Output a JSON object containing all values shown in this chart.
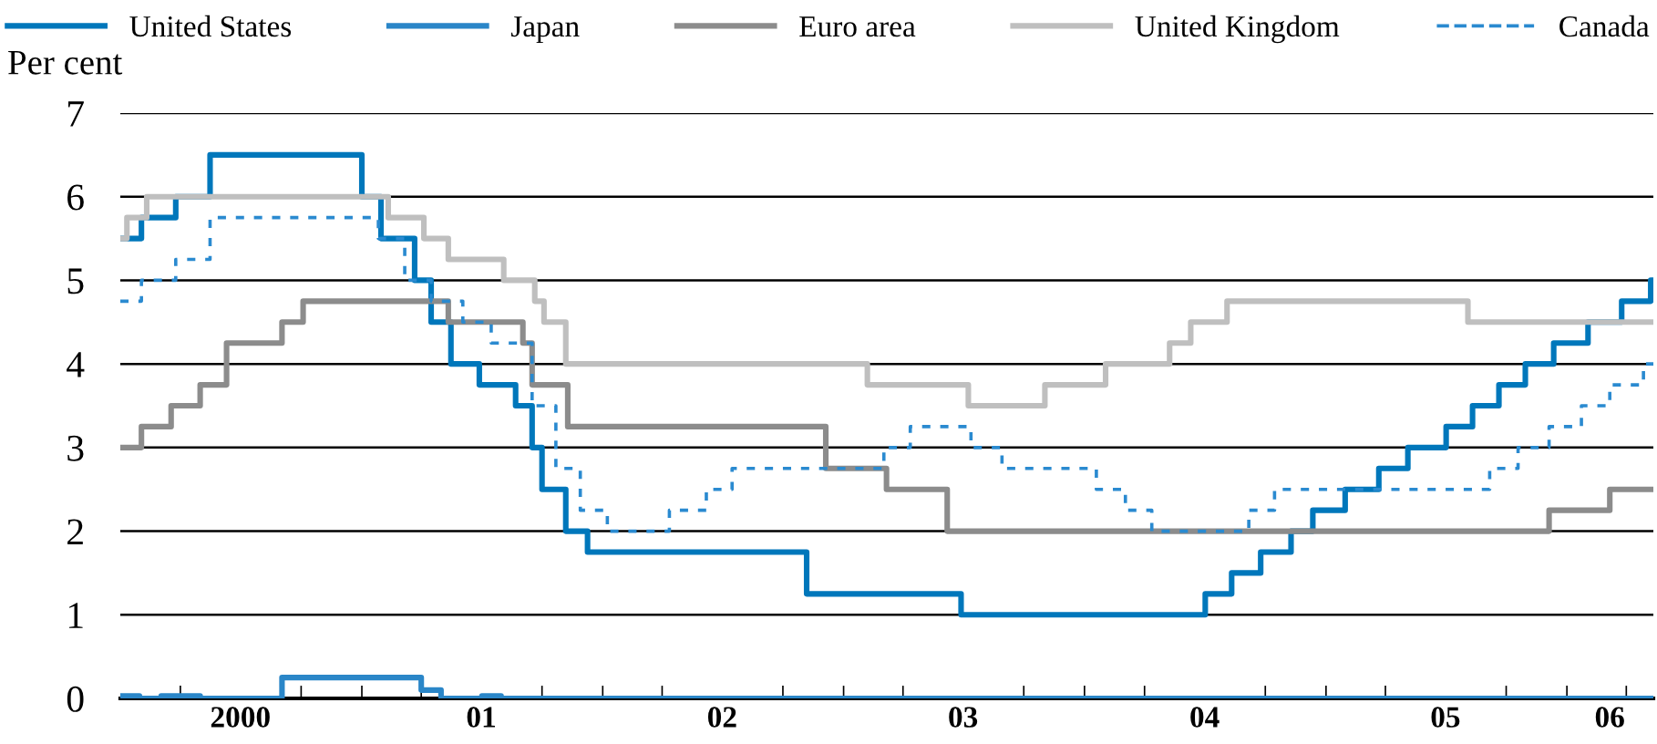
{
  "chart_data": {
    "type": "step",
    "ylabel": "Per cent",
    "xlim": [
      "2000-01-01",
      "2006-05-12"
    ],
    "ylim": [
      0,
      7
    ],
    "yticks": [
      0,
      1,
      2,
      3,
      4,
      5,
      6,
      7
    ],
    "xticks": [
      {
        "value": "2000-07-01",
        "label": "2000"
      },
      {
        "value": "2001-07-01",
        "label": "01"
      },
      {
        "value": "2002-07-01",
        "label": "02"
      },
      {
        "value": "2003-07-01",
        "label": "03"
      },
      {
        "value": "2004-07-01",
        "label": "04"
      },
      {
        "value": "2005-07-01",
        "label": "05"
      },
      {
        "value": "2006-03-07",
        "label": "06"
      },
      {
        "value": "2000-04-01",
        "label": null
      },
      {
        "value": "2000-10-01",
        "label": null
      },
      {
        "value": "2001-01-01",
        "label": null
      },
      {
        "value": "2001-04-01",
        "label": null
      },
      {
        "value": "2001-10-01",
        "label": null
      },
      {
        "value": "2002-01-01",
        "label": null
      },
      {
        "value": "2002-04-01",
        "label": null
      },
      {
        "value": "2002-10-01",
        "label": null
      },
      {
        "value": "2003-01-01",
        "label": null
      },
      {
        "value": "2003-04-01",
        "label": null
      },
      {
        "value": "2003-10-01",
        "label": null
      },
      {
        "value": "2004-01-01",
        "label": null
      },
      {
        "value": "2004-04-01",
        "label": null
      },
      {
        "value": "2004-10-01",
        "label": null
      },
      {
        "value": "2005-01-01",
        "label": null
      },
      {
        "value": "2005-04-01",
        "label": null
      },
      {
        "value": "2005-10-01",
        "label": null
      },
      {
        "value": "2006-01-01",
        "label": null
      },
      {
        "value": "2006-04-01",
        "label": null
      }
    ],
    "grid": "y",
    "legend": "top",
    "series": [
      {
        "name": "United States",
        "color": "#0077bb",
        "line_style": "solid",
        "x": [
          "2000-01-01",
          "2000-02-02",
          "2000-03-25",
          "2000-05-16",
          "2001-01-01",
          "2001-01-30",
          "2001-03-22",
          "2001-04-16",
          "2001-05-16",
          "2001-06-28",
          "2001-08-22",
          "2001-09-16",
          "2001-10-01",
          "2001-11-06",
          "2001-12-09",
          "2002-11-06",
          "2003-06-28",
          "2004-07-02",
          "2004-08-11",
          "2004-09-24",
          "2004-11-09",
          "2004-12-12",
          "2005-01-30",
          "2005-03-22",
          "2005-05-05",
          "2005-07-02",
          "2005-08-11",
          "2005-09-20",
          "2005-10-30",
          "2005-12-12",
          "2006-02-02",
          "2006-03-25",
          "2006-05-08",
          "2006-05-12"
        ],
        "values": [
          5.5,
          5.75,
          6.0,
          6.5,
          6.0,
          5.5,
          5.0,
          4.5,
          4.0,
          3.75,
          3.5,
          3.0,
          2.5,
          2.0,
          1.75,
          1.25,
          1.0,
          1.25,
          1.5,
          1.75,
          2.0,
          2.25,
          2.5,
          2.75,
          3.0,
          3.25,
          3.5,
          3.75,
          4.0,
          4.25,
          4.5,
          4.75,
          5.0,
          5.0
        ]
      },
      {
        "name": "Japan",
        "color": "#2a86c8",
        "line_style": "solid",
        "x": [
          "2000-01-01",
          "2000-01-30",
          "2000-03-03",
          "2000-05-01",
          "2000-09-02",
          "2001-04-01",
          "2001-05-01",
          "2001-07-02",
          "2001-07-31",
          "2006-05-12"
        ],
        "values": [
          0.03,
          0,
          0.03,
          0,
          0.25,
          0.1,
          0,
          0.03,
          0,
          0
        ]
      },
      {
        "name": "Euro area",
        "color": "#8c8c8c",
        "line_style": "solid",
        "x": [
          "2000-01-01",
          "2000-02-02",
          "2000-03-18",
          "2000-05-01",
          "2000-06-10",
          "2000-09-02",
          "2000-10-04",
          "2001-05-12",
          "2001-09-02",
          "2001-09-16",
          "2001-11-09",
          "2002-12-05",
          "2003-03-07",
          "2003-06-07",
          "2005-12-05",
          "2006-03-07",
          "2006-05-12"
        ],
        "values": [
          3.0,
          3.25,
          3.5,
          3.75,
          4.25,
          4.5,
          4.75,
          4.5,
          4.25,
          3.75,
          3.25,
          2.75,
          2.5,
          2.0,
          2.25,
          2.5,
          2.5
        ]
      },
      {
        "name": "United Kingdom",
        "color": "#bfbfbf",
        "line_style": "solid",
        "x": [
          "2000-01-01",
          "2000-01-11",
          "2000-02-10",
          "2001-02-10",
          "2001-04-05",
          "2001-05-12",
          "2001-08-04",
          "2001-09-20",
          "2001-10-04",
          "2001-11-06",
          "2003-02-06",
          "2003-07-09",
          "2003-11-02",
          "2004-02-02",
          "2004-05-09",
          "2004-06-10",
          "2004-08-04",
          "2005-08-04",
          "2006-05-12"
        ],
        "values": [
          5.5,
          5.75,
          6.0,
          5.75,
          5.5,
          5.25,
          5.0,
          4.75,
          4.5,
          4.0,
          3.75,
          3.5,
          3.75,
          4.0,
          4.25,
          4.5,
          4.75,
          4.5,
          4.5
        ]
      },
      {
        "name": "Canada",
        "color": "#2a8ad0",
        "line_style": "dotted",
        "x": [
          "2000-01-01",
          "2000-02-02",
          "2000-03-25",
          "2000-05-16",
          "2001-01-26",
          "2001-03-07",
          "2001-04-16",
          "2001-06-03",
          "2001-07-16",
          "2001-09-16",
          "2001-10-22",
          "2001-11-28",
          "2002-01-08",
          "2002-04-12",
          "2002-06-07",
          "2002-07-16",
          "2003-03-03",
          "2003-04-12",
          "2003-07-13",
          "2003-08-29",
          "2004-01-19",
          "2004-03-03",
          "2004-04-12",
          "2004-09-06",
          "2004-10-15",
          "2005-09-06",
          "2005-10-19",
          "2005-12-05",
          "2006-01-23",
          "2006-03-07",
          "2006-04-27",
          "2006-05-12"
        ],
        "values": [
          4.75,
          5.0,
          5.25,
          5.75,
          5.5,
          5.0,
          4.75,
          4.5,
          4.25,
          3.5,
          2.75,
          2.25,
          2.0,
          2.25,
          2.5,
          2.75,
          3.0,
          3.25,
          3.0,
          2.75,
          2.5,
          2.25,
          2.0,
          2.25,
          2.5,
          2.75,
          3.0,
          3.25,
          3.5,
          3.75,
          4.0,
          4.0
        ]
      }
    ]
  }
}
